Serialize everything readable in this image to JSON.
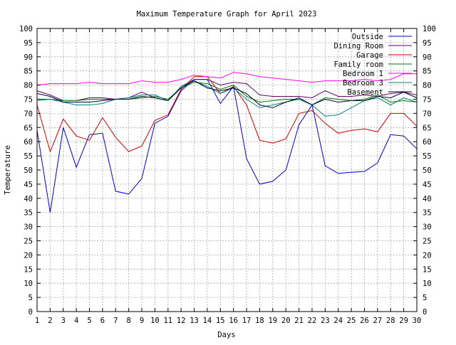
{
  "chart_data": {
    "type": "line",
    "title": "Maximum Temperature Graph for April 2023",
    "xlabel": "Days",
    "ylabel": "Temperature",
    "xlim": [
      1,
      30
    ],
    "ylim": [
      0,
      100
    ],
    "x_ticks": [
      1,
      2,
      3,
      4,
      5,
      6,
      7,
      8,
      9,
      10,
      11,
      12,
      13,
      14,
      15,
      16,
      17,
      18,
      19,
      20,
      21,
      22,
      23,
      24,
      25,
      26,
      27,
      28,
      29,
      30
    ],
    "y_ticks": [
      0,
      5,
      10,
      15,
      20,
      25,
      30,
      35,
      40,
      45,
      50,
      55,
      60,
      65,
      70,
      75,
      80,
      85,
      90,
      95,
      100
    ],
    "y_ticks_right": true,
    "grid": true,
    "legend_position": "top-right",
    "x": [
      1,
      2,
      3,
      4,
      5,
      6,
      7,
      8,
      9,
      10,
      11,
      12,
      13,
      14,
      15,
      16,
      17,
      18,
      19,
      20,
      21,
      22,
      23,
      24,
      25,
      26,
      27,
      28,
      29,
      30
    ],
    "series": [
      {
        "name": "Outside",
        "color": "#0000cc",
        "values": [
          64.0,
          35.0,
          65.0,
          51.0,
          62.5,
          63.0,
          42.5,
          41.5,
          47.0,
          66.5,
          69.0,
          78.0,
          82.0,
          82.0,
          73.5,
          79.5,
          54.0,
          45.0,
          46.0,
          50.0,
          66.0,
          73.0,
          51.5,
          48.8,
          49.2,
          49.5,
          52.5,
          62.5,
          62.0,
          57.5
        ]
      },
      {
        "name": "Dining Room",
        "color": "#660066",
        "values": [
          78.0,
          76.5,
          74.5,
          74.5,
          75.5,
          75.5,
          75.0,
          75.5,
          77.5,
          75.5,
          74.5,
          79.5,
          82.0,
          82.0,
          80.0,
          81.0,
          80.5,
          76.5,
          76.0,
          76.0,
          76.0,
          75.5,
          78.0,
          76.0,
          76.0,
          76.5,
          76.0,
          77.0,
          77.5,
          76.5
        ]
      },
      {
        "name": "Garage",
        "color": "#cc0000",
        "values": [
          73.0,
          56.5,
          68.0,
          62.0,
          60.5,
          68.5,
          61.5,
          56.5,
          58.5,
          67.5,
          69.5,
          78.5,
          83.0,
          83.0,
          77.0,
          79.5,
          73.0,
          60.5,
          59.5,
          61.0,
          70.0,
          71.0,
          66.5,
          63.0,
          64.0,
          64.5,
          63.5,
          70.0,
          70.0,
          65.5
        ]
      },
      {
        "name": "Family room",
        "color": "#007700",
        "values": [
          75.0,
          75.0,
          74.5,
          74.5,
          75.0,
          75.0,
          75.0,
          75.0,
          75.5,
          76.0,
          75.0,
          79.0,
          81.0,
          80.5,
          78.5,
          80.0,
          76.0,
          74.0,
          74.5,
          75.0,
          75.0,
          73.0,
          75.5,
          75.0,
          74.5,
          75.0,
          76.5,
          74.0,
          74.5,
          74.0
        ]
      },
      {
        "name": "Bedroom 1",
        "color": "#ff00ff",
        "values": [
          80.0,
          80.5,
          80.5,
          80.5,
          81.0,
          80.5,
          80.5,
          80.5,
          81.5,
          81.0,
          81.0,
          82.0,
          83.5,
          83.0,
          82.5,
          84.5,
          84.0,
          83.0,
          82.5,
          82.0,
          81.5,
          81.0,
          81.5,
          81.5,
          81.5,
          82.0,
          81.5,
          82.0,
          84.0,
          84.0
        ]
      },
      {
        "name": "Bedroom 3",
        "color": "#008080",
        "values": [
          74.5,
          75.0,
          74.0,
          73.0,
          73.0,
          73.5,
          75.0,
          75.5,
          76.5,
          76.5,
          74.5,
          79.5,
          81.5,
          79.5,
          77.0,
          79.0,
          75.0,
          72.0,
          73.0,
          74.0,
          75.0,
          73.0,
          69.0,
          69.5,
          72.0,
          74.5,
          75.5,
          73.0,
          75.5,
          74.0
        ]
      },
      {
        "name": "Basement",
        "color": "#000033",
        "values": [
          77.0,
          76.0,
          74.0,
          74.0,
          74.0,
          74.5,
          75.0,
          75.0,
          76.0,
          75.5,
          74.5,
          79.0,
          81.5,
          79.0,
          78.0,
          79.0,
          77.0,
          73.0,
          72.0,
          74.0,
          75.5,
          73.0,
          75.0,
          74.0,
          74.5,
          74.5,
          76.0,
          75.5,
          77.5,
          75.5
        ]
      }
    ]
  }
}
